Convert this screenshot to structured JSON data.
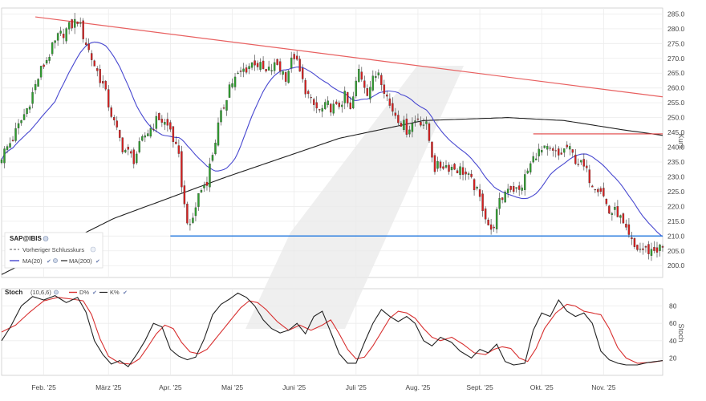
{
  "chart_data": [
    {
      "type": "candlestick",
      "symbol": "SAP@IBIS",
      "ylabel": "Kurs",
      "ylim": [
        196,
        287
      ],
      "y_ticks": [
        200,
        205,
        210,
        215,
        220,
        225,
        230,
        235,
        240,
        245,
        250,
        255,
        260,
        265,
        270,
        275,
        280,
        285
      ],
      "x_ticks": [
        "Feb. '25",
        "März '25",
        "Apr. '25",
        "Mai '25",
        "Juni '25",
        "Juli '25",
        "Aug. '25",
        "Sept. '25",
        "Okt. '25",
        "Nov. '25"
      ],
      "x_tick_index": [
        15,
        38,
        60,
        82,
        104,
        126,
        148,
        170,
        192,
        214
      ],
      "n_days": 236,
      "legend": {
        "title": "SAP@IBIS",
        "prev_close": "Vorheriger Schlusskurs",
        "ma20": "MA(20)",
        "ma200": "MA(200)"
      },
      "colors": {
        "up": "#2fa02f",
        "down": "#d82020",
        "ma20": "#4848d0",
        "ma200": "#222222",
        "trend": "#e86060",
        "support": "#2f80e0",
        "hline": "#e04040"
      },
      "close_anchors": [
        [
          0,
          237
        ],
        [
          4,
          243
        ],
        [
          9,
          253
        ],
        [
          14,
          266
        ],
        [
          20,
          277
        ],
        [
          27,
          283
        ],
        [
          32,
          270
        ],
        [
          36,
          261
        ],
        [
          40,
          248
        ],
        [
          43,
          240
        ],
        [
          47,
          236
        ],
        [
          51,
          244
        ],
        [
          56,
          250
        ],
        [
          60,
          246
        ],
        [
          63,
          236
        ],
        [
          65,
          220
        ],
        [
          67,
          212
        ],
        [
          70,
          224
        ],
        [
          73,
          229
        ],
        [
          77,
          247
        ],
        [
          81,
          261
        ],
        [
          86,
          266
        ],
        [
          90,
          269
        ],
        [
          94,
          265
        ],
        [
          98,
          268
        ],
        [
          101,
          264
        ],
        [
          104,
          271
        ],
        [
          107,
          262
        ],
        [
          110,
          255
        ],
        [
          113,
          252
        ],
        [
          116,
          254
        ],
        [
          119,
          253
        ],
        [
          122,
          257
        ],
        [
          124,
          252
        ],
        [
          127,
          266
        ],
        [
          130,
          259
        ],
        [
          134,
          266
        ],
        [
          138,
          254
        ],
        [
          141,
          250
        ],
        [
          144,
          246
        ],
        [
          148,
          250
        ],
        [
          151,
          247
        ],
        [
          154,
          233
        ],
        [
          157,
          234
        ],
        [
          161,
          233
        ],
        [
          164,
          232
        ],
        [
          168,
          227
        ],
        [
          171,
          220
        ],
        [
          174,
          211
        ],
        [
          177,
          221
        ],
        [
          180,
          227
        ],
        [
          184,
          225
        ],
        [
          187,
          232
        ],
        [
          190,
          238
        ],
        [
          194,
          239
        ],
        [
          198,
          237
        ],
        [
          201,
          240
        ],
        [
          204,
          236
        ],
        [
          207,
          233
        ],
        [
          210,
          228
        ],
        [
          213,
          226
        ],
        [
          216,
          218
        ],
        [
          219,
          218
        ],
        [
          222,
          211
        ],
        [
          225,
          206
        ],
        [
          230,
          205
        ],
        [
          235,
          206
        ]
      ],
      "trend_line": {
        "from": [
          12,
          284
        ],
        "to": [
          235,
          257
        ]
      },
      "support_line": {
        "from": [
          60,
          210
        ],
        "to": [
          235,
          210
        ],
        "value": 210
      },
      "resistance_line": {
        "from": [
          189,
          244.5
        ],
        "to": [
          235,
          244.5
        ],
        "value": 244.5
      }
    },
    {
      "type": "line",
      "title": "Stoch",
      "params": "(10,6,6)",
      "ylabel": "Stoch",
      "ylim": [
        0,
        100
      ],
      "y_ticks": [
        20,
        40,
        60,
        80
      ],
      "series": [
        {
          "name": "D%",
          "color": "#d83030",
          "anchors": [
            [
              0,
              50
            ],
            [
              5,
              58
            ],
            [
              10,
              73
            ],
            [
              15,
              86
            ],
            [
              20,
              90
            ],
            [
              25,
              88
            ],
            [
              29,
              86
            ],
            [
              32,
              70
            ],
            [
              35,
              42
            ],
            [
              38,
              22
            ],
            [
              42,
              14
            ],
            [
              46,
              13
            ],
            [
              49,
              19
            ],
            [
              52,
              33
            ],
            [
              55,
              48
            ],
            [
              58,
              58
            ],
            [
              61,
              54
            ],
            [
              64,
              38
            ],
            [
              67,
              27
            ],
            [
              70,
              25
            ],
            [
              73,
              30
            ],
            [
              77,
              46
            ],
            [
              81,
              62
            ],
            [
              85,
              78
            ],
            [
              88,
              86
            ],
            [
              91,
              84
            ],
            [
              94,
              76
            ],
            [
              98,
              62
            ],
            [
              102,
              52
            ],
            [
              106,
              58
            ],
            [
              110,
              52
            ],
            [
              114,
              58
            ],
            [
              117,
              64
            ],
            [
              120,
              48
            ],
            [
              123,
              30
            ],
            [
              126,
              19
            ],
            [
              129,
              21
            ],
            [
              132,
              34
            ],
            [
              135,
              50
            ],
            [
              138,
              66
            ],
            [
              141,
              74
            ],
            [
              144,
              72
            ],
            [
              147,
              66
            ],
            [
              150,
              54
            ],
            [
              153,
              44
            ],
            [
              156,
              40
            ],
            [
              160,
              44
            ],
            [
              164,
              36
            ],
            [
              168,
              26
            ],
            [
              172,
              24
            ],
            [
              175,
              30
            ],
            [
              178,
              33
            ],
            [
              181,
              31
            ],
            [
              184,
              20
            ],
            [
              187,
              16
            ],
            [
              190,
              31
            ],
            [
              193,
              54
            ],
            [
              197,
              72
            ],
            [
              201,
              82
            ],
            [
              204,
              80
            ],
            [
              207,
              74
            ],
            [
              210,
              72
            ],
            [
              213,
              70
            ],
            [
              216,
              54
            ],
            [
              219,
              32
            ],
            [
              222,
              20
            ],
            [
              226,
              14
            ],
            [
              231,
              15
            ],
            [
              235,
              17
            ]
          ]
        },
        {
          "name": "K%",
          "color": "#222222",
          "anchors": [
            [
              0,
              40
            ],
            [
              3,
              55
            ],
            [
              7,
              80
            ],
            [
              11,
              91
            ],
            [
              15,
              87
            ],
            [
              19,
              92
            ],
            [
              23,
              84
            ],
            [
              27,
              90
            ],
            [
              30,
              73
            ],
            [
              33,
              40
            ],
            [
              36,
              24
            ],
            [
              39,
              13
            ],
            [
              42,
              17
            ],
            [
              45,
              10
            ],
            [
              48,
              24
            ],
            [
              51,
              40
            ],
            [
              54,
              60
            ],
            [
              57,
              56
            ],
            [
              60,
              30
            ],
            [
              63,
              22
            ],
            [
              66,
              18
            ],
            [
              69,
              21
            ],
            [
              72,
              42
            ],
            [
              75,
              70
            ],
            [
              78,
              82
            ],
            [
              81,
              88
            ],
            [
              84,
              95
            ],
            [
              87,
              90
            ],
            [
              90,
              80
            ],
            [
              93,
              64
            ],
            [
              96,
              54
            ],
            [
              99,
              49
            ],
            [
              102,
              52
            ],
            [
              105,
              60
            ],
            [
              108,
              48
            ],
            [
              111,
              68
            ],
            [
              114,
              74
            ],
            [
              117,
              50
            ],
            [
              120,
              25
            ],
            [
              123,
              14
            ],
            [
              126,
              14
            ],
            [
              129,
              38
            ],
            [
              132,
              60
            ],
            [
              135,
              76
            ],
            [
              138,
              68
            ],
            [
              141,
              62
            ],
            [
              144,
              68
            ],
            [
              147,
              60
            ],
            [
              150,
              40
            ],
            [
              153,
              34
            ],
            [
              156,
              44
            ],
            [
              160,
              38
            ],
            [
              163,
              28
            ],
            [
              167,
              20
            ],
            [
              170,
              30
            ],
            [
              173,
              26
            ],
            [
              176,
              36
            ],
            [
              179,
              16
            ],
            [
              182,
              12
            ],
            [
              186,
              14
            ],
            [
              189,
              52
            ],
            [
              192,
              72
            ],
            [
              195,
              68
            ],
            [
              198,
              87
            ],
            [
              201,
              74
            ],
            [
              204,
              68
            ],
            [
              207,
              72
            ],
            [
              210,
              60
            ],
            [
              213,
              28
            ],
            [
              216,
              18
            ],
            [
              219,
              14
            ],
            [
              222,
              12
            ],
            [
              226,
              12
            ],
            [
              230,
              15
            ],
            [
              235,
              17
            ]
          ]
        }
      ],
      "legend": [
        "Stoch",
        "(10,6,6)",
        "D%",
        "K%"
      ]
    }
  ]
}
